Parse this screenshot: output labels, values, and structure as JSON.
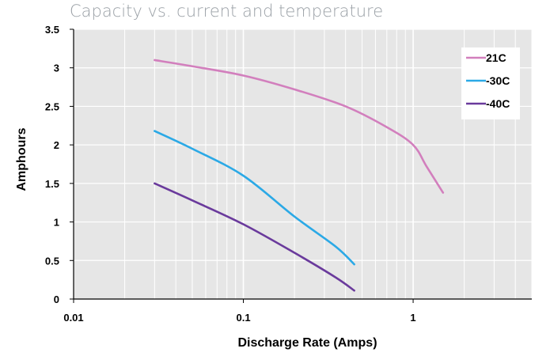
{
  "chart_data": {
    "type": "line",
    "title": "Capacity vs. current and temperature",
    "xlabel": "Discharge Rate (Amps)",
    "ylabel": "Amphours",
    "x_scale": "log",
    "xlim": [
      0.01,
      5
    ],
    "ylim": [
      0,
      3.5
    ],
    "x_ticks": [
      0.01,
      0.1,
      1
    ],
    "x_tick_labels": [
      "0.01",
      "0.1",
      "1"
    ],
    "y_ticks": [
      0,
      0.5,
      1,
      1.5,
      2,
      2.5,
      3,
      3.5
    ],
    "y_tick_labels": [
      "0",
      "0.5",
      "1",
      "1.5",
      "2",
      "2.5",
      "3",
      "3.5"
    ],
    "grid": true,
    "legend_position": "top-right",
    "series": [
      {
        "name": "21C",
        "color": "#d27fbd",
        "x": [
          0.03,
          0.05,
          0.1,
          0.2,
          0.4,
          0.7,
          1.0,
          1.2,
          1.5
        ],
        "y": [
          3.1,
          3.02,
          2.9,
          2.72,
          2.5,
          2.23,
          2.0,
          1.72,
          1.38
        ]
      },
      {
        "name": "-30C",
        "color": "#2ba9e6",
        "x": [
          0.03,
          0.05,
          0.1,
          0.2,
          0.35,
          0.45
        ],
        "y": [
          2.18,
          1.95,
          1.6,
          1.07,
          0.68,
          0.45
        ]
      },
      {
        "name": "-40C",
        "color": "#6a3a9c",
        "x": [
          0.03,
          0.05,
          0.1,
          0.2,
          0.35,
          0.45
        ],
        "y": [
          1.5,
          1.28,
          0.97,
          0.6,
          0.28,
          0.11
        ]
      }
    ]
  }
}
